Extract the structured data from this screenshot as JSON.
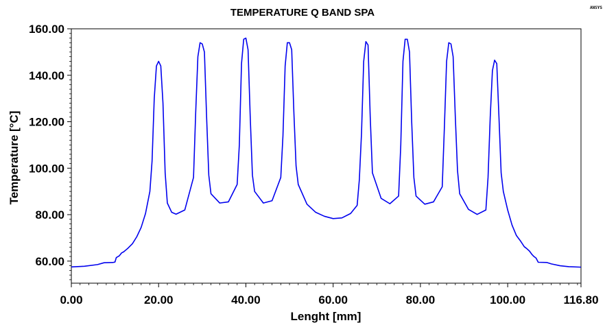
{
  "brand_text": "ANSYS",
  "chart_data": {
    "type": "line",
    "title": "TEMPERATURE Q BAND SPA",
    "xlabel": "Lenght [mm]",
    "ylabel": "Temperature [°C]",
    "xlim": [
      0,
      116.8
    ],
    "ylim": [
      50.5,
      160
    ],
    "x_ticks": [
      0,
      20,
      40,
      60,
      80,
      100,
      116.8
    ],
    "x_tick_labels": [
      "0.00",
      "20.00",
      "40.00",
      "60.00",
      "80.00",
      "100.00",
      "116.80"
    ],
    "y_ticks": [
      60,
      80,
      100,
      120,
      140,
      160
    ],
    "y_tick_labels": [
      "60.00",
      "80.00",
      "100.00",
      "120.00",
      "140.00",
      "160.00"
    ],
    "grid": false,
    "line_color": "#0000ee",
    "series": [
      {
        "x": [
          0,
          3,
          6,
          7.5,
          9.5,
          10,
          10.3,
          11,
          11.5,
          12,
          12.5,
          13,
          14,
          15,
          16,
          17,
          18,
          18.5,
          19,
          19.5,
          20,
          20.5,
          21,
          21.5,
          22,
          23,
          24,
          26,
          28,
          28.5,
          29,
          29.5,
          30,
          30.5,
          31,
          31.5,
          32,
          34,
          36,
          38,
          38.5,
          39,
          39.5,
          40,
          40.5,
          41,
          41.5,
          42,
          44,
          46,
          48,
          48.5,
          49,
          49.5,
          50,
          50.5,
          51,
          51.5,
          52,
          54,
          56,
          58,
          60,
          62,
          64,
          65.5,
          66,
          66.5,
          67,
          67.5,
          68,
          68.5,
          69,
          71,
          73,
          75,
          75.5,
          76,
          76.5,
          77,
          77.5,
          78,
          78.5,
          79,
          81,
          83,
          85,
          85.5,
          86,
          86.5,
          87,
          87.5,
          88,
          88.5,
          89,
          91,
          93,
          95,
          95.5,
          96,
          96.5,
          97,
          97.5,
          98,
          98.5,
          99,
          100,
          101,
          102,
          103,
          103.8,
          104.3,
          105,
          105.5,
          106,
          106.5,
          107,
          109,
          110,
          112,
          114,
          116.8
        ],
        "y": [
          57.5,
          57.8,
          58.5,
          59.3,
          59.4,
          59.6,
          61.5,
          62.3,
          63.5,
          64.0,
          64.8,
          65.6,
          67.5,
          70.5,
          74.5,
          80.5,
          90,
          103,
          130,
          144,
          146,
          144,
          128,
          98,
          85,
          81,
          80.2,
          82,
          96,
          124,
          148,
          154,
          153.5,
          150,
          122,
          97,
          89,
          85,
          85.5,
          93,
          110,
          145,
          155.5,
          156,
          151,
          122,
          97,
          90,
          85,
          86,
          96,
          114,
          144,
          154,
          154,
          151,
          124,
          101,
          93,
          84.5,
          81,
          79.3,
          78.3,
          78.6,
          80.5,
          84,
          95,
          115,
          146,
          154.5,
          153,
          122,
          98,
          87,
          84.7,
          88,
          110,
          146,
          155.5,
          155.5,
          150,
          120,
          96,
          88,
          84.5,
          85.5,
          92,
          118,
          146,
          154,
          153.5,
          148,
          122,
          99,
          89,
          82.3,
          80.1,
          82,
          96,
          122,
          142,
          146.5,
          145,
          122,
          98,
          90,
          82,
          75.5,
          71,
          68.5,
          66.2,
          65.5,
          64.3,
          63.0,
          62.0,
          61.3,
          59.5,
          59.4,
          58.8,
          58.0,
          57.6,
          57.4
        ]
      }
    ]
  }
}
